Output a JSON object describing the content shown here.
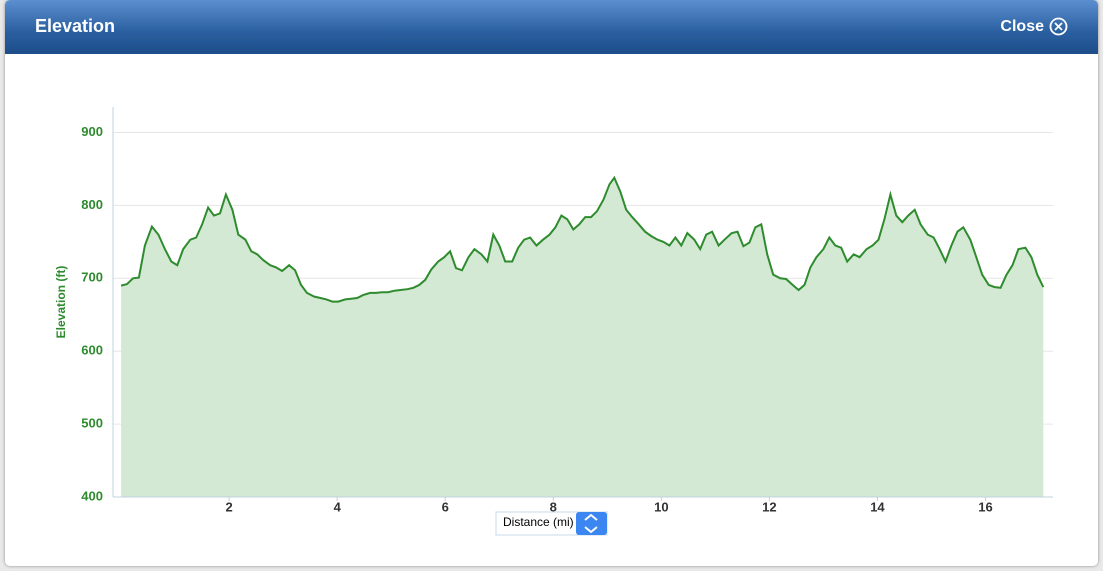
{
  "header": {
    "title": "Elevation",
    "close": "Close"
  },
  "chart_data": {
    "type": "area",
    "xlabel": "Distance (mi)",
    "ylabel": "Elevation (ft)",
    "xlim": [
      -0.15,
      17.25
    ],
    "ylim": [
      400,
      935
    ],
    "xticks": [
      2,
      4,
      6,
      8,
      10,
      12,
      14,
      16
    ],
    "yticks": [
      400,
      500,
      600,
      700,
      800,
      900
    ],
    "grid": true,
    "series": [
      {
        "name": "Elevation",
        "color": "#2e8b2e",
        "area_color": "#d3e9d3",
        "x": [
          0,
          0.11,
          0.22,
          0.33,
          0.44,
          0.57,
          0.69,
          0.81,
          0.93,
          1.04,
          1.15,
          1.28,
          1.39,
          1.5,
          1.61,
          1.72,
          1.83,
          1.94,
          2.06,
          2.17,
          2.3,
          2.41,
          2.52,
          2.63,
          2.76,
          2.87,
          2.98,
          3.11,
          3.22,
          3.33,
          3.44,
          3.57,
          3.69,
          3.8,
          3.91,
          4.02,
          4.15,
          4.26,
          4.37,
          4.48,
          4.61,
          4.72,
          4.83,
          4.94,
          5.06,
          5.17,
          5.3,
          5.41,
          5.52,
          5.63,
          5.74,
          5.87,
          5.98,
          6.09,
          6.2,
          6.31,
          6.43,
          6.54,
          6.67,
          6.78,
          6.89,
          7,
          7.11,
          7.24,
          7.35,
          7.46,
          7.57,
          7.69,
          7.81,
          7.93,
          8.04,
          8.15,
          8.26,
          8.37,
          8.48,
          8.59,
          8.7,
          8.81,
          8.93,
          9.04,
          9.13,
          9.24,
          9.35,
          9.46,
          9.57,
          9.7,
          9.81,
          9.93,
          10.04,
          10.15,
          10.26,
          10.37,
          10.48,
          10.61,
          10.72,
          10.83,
          10.94,
          11.06,
          11.17,
          11.3,
          11.41,
          11.52,
          11.63,
          11.74,
          11.85,
          11.96,
          12.07,
          12.2,
          12.31,
          12.43,
          12.54,
          12.65,
          12.76,
          12.87,
          13,
          13.11,
          13.22,
          13.33,
          13.44,
          13.56,
          13.67,
          13.8,
          13.91,
          14.02,
          14.13,
          14.24,
          14.35,
          14.46,
          14.57,
          14.69,
          14.8,
          14.93,
          15.04,
          15.15,
          15.26,
          15.37,
          15.48,
          15.59,
          15.72,
          15.83,
          15.94,
          16.06,
          16.17,
          16.28,
          16.39,
          16.5,
          16.61,
          16.74,
          16.85,
          16.96,
          17.07
        ],
        "values": [
          690,
          692,
          700,
          701,
          745,
          771,
          760,
          740,
          723,
          718,
          740,
          753,
          756,
          774,
          797,
          786,
          789,
          815,
          794,
          760,
          753,
          737,
          733,
          725,
          718,
          715,
          710,
          718,
          711,
          691,
          680,
          675,
          673,
          671,
          668,
          668,
          671,
          672,
          673,
          677,
          680,
          680,
          681,
          681,
          683,
          684,
          685,
          687,
          691,
          698,
          712,
          723,
          729,
          737,
          714,
          711,
          729,
          740,
          733,
          723,
          760,
          745,
          723,
          723,
          742,
          753,
          756,
          745,
          753,
          760,
          770,
          786,
          781,
          767,
          774,
          784,
          784,
          792,
          808,
          829,
          838,
          819,
          794,
          784,
          775,
          764,
          758,
          753,
          750,
          745,
          756,
          745,
          762,
          753,
          740,
          760,
          764,
          745,
          753,
          762,
          764,
          744,
          749,
          770,
          774,
          733,
          705,
          700,
          699,
          691,
          684,
          691,
          715,
          729,
          740,
          756,
          745,
          742,
          723,
          733,
          729,
          740,
          745,
          753,
          781,
          815,
          786,
          777,
          786,
          794,
          774,
          760,
          756,
          740,
          723,
          745,
          764,
          770,
          753,
          729,
          705,
          691,
          688,
          687,
          705,
          718,
          740,
          742,
          729,
          705,
          688
        ]
      }
    ]
  }
}
